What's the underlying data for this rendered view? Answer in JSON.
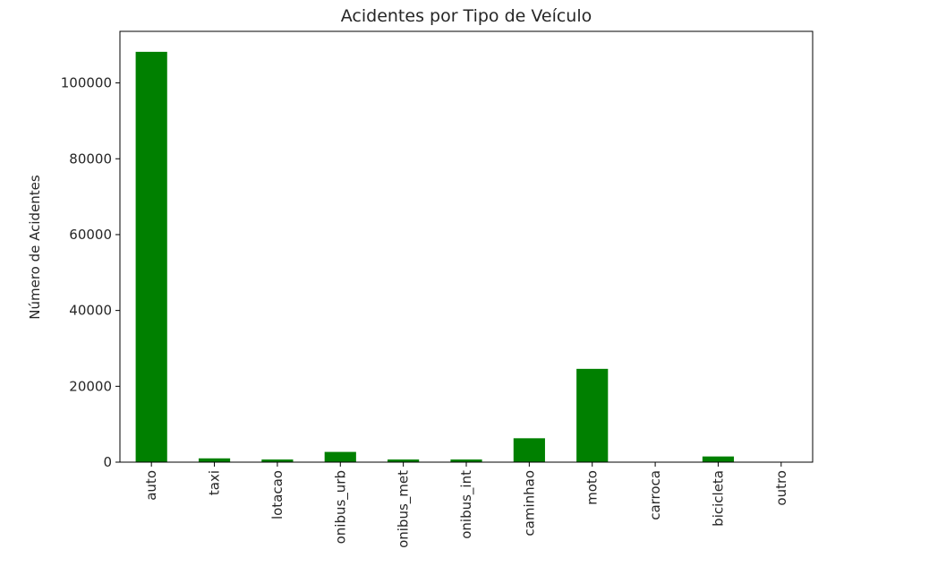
{
  "chart_data": {
    "type": "bar",
    "title": "Acidentes por Tipo de Veículo",
    "xlabel": "",
    "ylabel": "Número de Acidentes",
    "categories": [
      "auto",
      "taxi",
      "lotacao",
      "onibus_urb",
      "onibus_met",
      "onibus_int",
      "caminhao",
      "moto",
      "carroca",
      "bicicleta",
      "outro"
    ],
    "values": [
      108200,
      1000,
      700,
      2700,
      700,
      700,
      6300,
      24600,
      50,
      1500,
      40
    ],
    "ylim": [
      0,
      113600
    ],
    "yticks": [
      0,
      20000,
      40000,
      60000,
      80000,
      100000
    ],
    "ytick_labels": [
      "0",
      "20000",
      "40000",
      "60000",
      "80000",
      "100000"
    ],
    "bar_color": "#008000",
    "grid": false,
    "legend": "none"
  }
}
